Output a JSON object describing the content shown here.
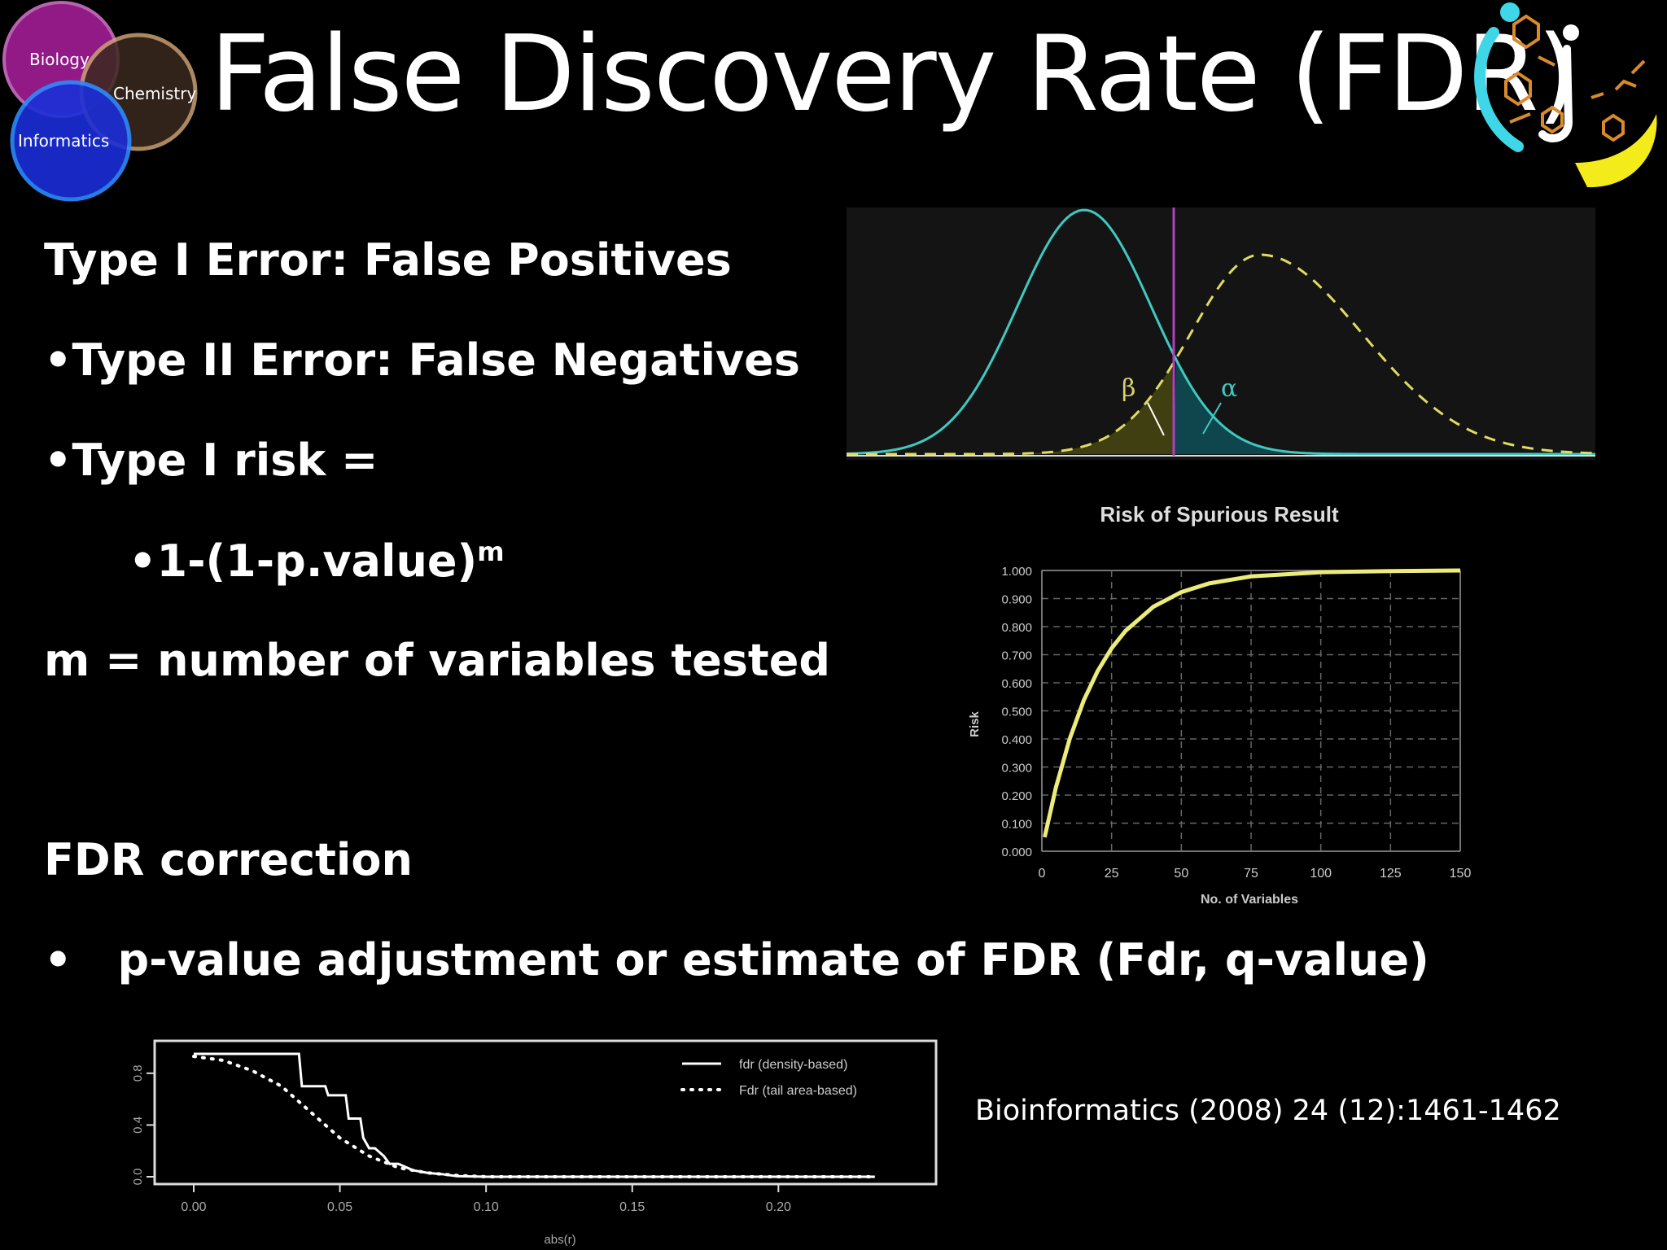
{
  "venn": {
    "labels": [
      "Biology",
      "Chemistry",
      "Informatics"
    ]
  },
  "slide": {
    "title": "False Discovery Rate (FDR)",
    "bullets": {
      "b1": "Type I Error: False Positives",
      "b2": "•Type II Error: False Negatives",
      "b3": "•Type I risk =",
      "b4": "•1-(1-p.value)",
      "b4_sup": "m",
      "b5": "m = number of variables tested",
      "b6": "FDR correction",
      "b7_marker": "•",
      "b7": "p-value adjustment or estimate of FDR (Fdr, q-value)"
    },
    "reference": "Bioinformatics (2008) 24 (12):1461-1462"
  },
  "chart_data": [
    {
      "type": "line",
      "name": "distribution-overlap",
      "labels": [
        "β",
        "α"
      ],
      "colors": {
        "null": "#3fc9c0",
        "alt": "#e0dc62",
        "threshold": "#b040c0"
      }
    },
    {
      "type": "line",
      "title": "Risk of Spurious Result",
      "xlabel": "No. of Variables",
      "ylabel": "Risk",
      "xlim": [
        0,
        150
      ],
      "ylim": [
        0,
        1
      ],
      "xticks": [
        "0",
        "25",
        "50",
        "75",
        "100",
        "125",
        "150"
      ],
      "yticks": [
        "0.000",
        "0.100",
        "0.200",
        "0.300",
        "0.400",
        "0.500",
        "0.600",
        "0.700",
        "0.800",
        "0.900",
        "1.000"
      ],
      "series": [
        {
          "x": [
            1,
            5,
            10,
            15,
            20,
            25,
            30,
            40,
            50,
            60,
            75,
            100,
            125,
            150
          ],
          "y": [
            0.05,
            0.226,
            0.401,
            0.537,
            0.642,
            0.723,
            0.785,
            0.871,
            0.923,
            0.954,
            0.979,
            0.994,
            0.998,
            1.0
          ]
        }
      ],
      "grid": true,
      "color": "#ecec7a"
    },
    {
      "type": "line",
      "xlabel": "abs(r)",
      "xlim": [
        0,
        0.24
      ],
      "ylim": [
        0,
        1
      ],
      "xticks": [
        "0.00",
        "0.05",
        "0.10",
        "0.15",
        "0.20"
      ],
      "yticks": [
        "0.0",
        "0.4",
        "0.8"
      ],
      "legend": "top-right",
      "series": [
        {
          "name": "fdr (density-based)",
          "style": "solid",
          "x": [
            0,
            0.036,
            0.037,
            0.045,
            0.046,
            0.052,
            0.053,
            0.057,
            0.058,
            0.06,
            0.062,
            0.065,
            0.067,
            0.07,
            0.075,
            0.08,
            0.085,
            0.09,
            0.1,
            0.233
          ],
          "y": [
            0.95,
            0.95,
            0.7,
            0.7,
            0.63,
            0.63,
            0.45,
            0.45,
            0.3,
            0.22,
            0.22,
            0.16,
            0.1,
            0.1,
            0.05,
            0.03,
            0.02,
            0.005,
            0.0,
            0.0
          ]
        },
        {
          "name": "Fdr (tail area-based)",
          "style": "dotted",
          "x": [
            0,
            0.01,
            0.02,
            0.03,
            0.04,
            0.05,
            0.06,
            0.07,
            0.08,
            0.09,
            0.1,
            0.233
          ],
          "y": [
            0.93,
            0.9,
            0.82,
            0.7,
            0.5,
            0.3,
            0.16,
            0.07,
            0.03,
            0.01,
            0.0,
            0.0
          ]
        }
      ]
    }
  ]
}
